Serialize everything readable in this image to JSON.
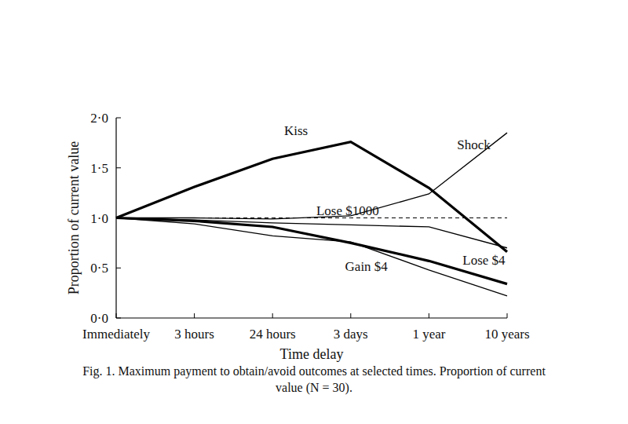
{
  "chart_data": {
    "type": "line",
    "title": "Fig. 1. Maximum payment to obtain/avoid outcomes at selected times. Proportion of current value (N = 30).",
    "x_label": "Time delay",
    "y_label": "Proportion of current value",
    "categories": [
      "Immediately",
      "3 hours",
      "24 hours",
      "3 days",
      "1 year",
      "10 years"
    ],
    "ylim": [
      0,
      2
    ],
    "yticks": [
      {
        "value": 0,
        "label": "0·0"
      },
      {
        "value": 0.5,
        "label": "0·5"
      },
      {
        "value": 1,
        "label": "1·0"
      },
      {
        "value": 1.5,
        "label": "1·5"
      },
      {
        "value": 2,
        "label": "2·0"
      }
    ],
    "grid": false,
    "series": [
      {
        "name": "Kiss",
        "color": "#000000",
        "line_style": "thick",
        "values": [
          1.0,
          1.31,
          1.59,
          1.76,
          1.3,
          0.66
        ]
      },
      {
        "name": "Shock",
        "color": "#000000",
        "line_style": "solid",
        "values": [
          1.0,
          1.0,
          0.99,
          1.02,
          1.24,
          1.85
        ]
      },
      {
        "name": "Lose $1000",
        "color": "#000000",
        "line_style": "solid",
        "values": [
          1.0,
          0.98,
          0.95,
          0.93,
          0.91,
          0.7
        ]
      },
      {
        "name": "Lose $4",
        "color": "#000000",
        "line_style": "thick",
        "values": [
          1.0,
          0.97,
          0.91,
          0.75,
          0.57,
          0.34
        ]
      },
      {
        "name": "Gain $4",
        "color": "#000000",
        "line_style": "solid",
        "values": [
          1.0,
          0.94,
          0.82,
          0.76,
          0.48,
          0.22
        ]
      },
      {
        "color": "#000000",
        "line_style": "dashed",
        "values": [
          1.0,
          1.0,
          1.0,
          1.0,
          1.0,
          1.0
        ]
      }
    ]
  }
}
